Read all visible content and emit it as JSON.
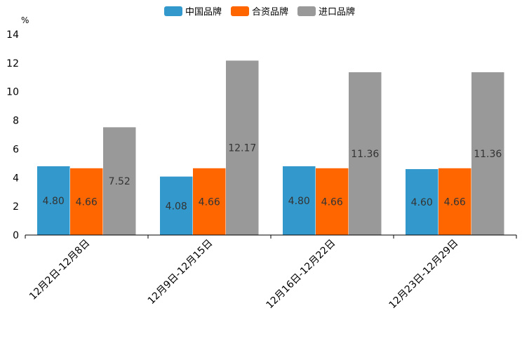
{
  "chart_data": {
    "type": "bar",
    "title": "",
    "xlabel": "",
    "ylabel": "%",
    "ylim": [
      0,
      14
    ],
    "yticks": [
      0,
      2,
      4,
      6,
      8,
      10,
      12,
      14
    ],
    "grid": false,
    "legend_position": "top-center",
    "categories": [
      "12月2日-12月8日",
      "12月9日-12月15日",
      "12月16日-12月22日",
      "12月23日-12月29日"
    ],
    "series": [
      {
        "name": "中国品牌",
        "color": "#3399cc",
        "values": [
          4.8,
          4.08,
          4.8,
          4.6
        ],
        "labels": [
          "4.80",
          "4.08",
          "4.80",
          "4.60"
        ]
      },
      {
        "name": "合资品牌",
        "color": "#ff6600",
        "values": [
          4.66,
          4.66,
          4.66,
          4.66
        ],
        "labels": [
          "4.66",
          "4.66",
          "4.66",
          "4.66"
        ]
      },
      {
        "name": "进口品牌",
        "color": "#999999",
        "values": [
          7.52,
          12.17,
          11.36,
          11.36
        ],
        "labels": [
          "7.52",
          "12.17",
          "11.36",
          "11.36"
        ]
      }
    ]
  }
}
